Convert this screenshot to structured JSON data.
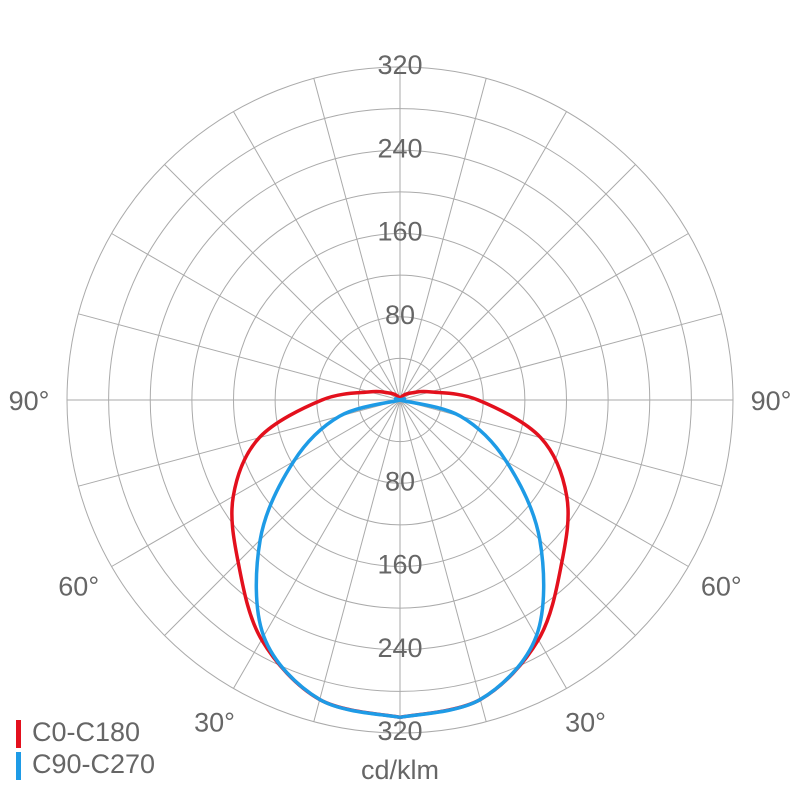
{
  "chart_data": {
    "type": "polar",
    "unit_label": "cd/klm",
    "angles": [
      0,
      15,
      30,
      45,
      60,
      75,
      90,
      105,
      120,
      135,
      150,
      165,
      180
    ],
    "series": [
      {
        "name": "C0-C180",
        "color": "#e3101d",
        "values": [
          305,
          298,
          266,
          220,
          185,
          140,
          75,
          30,
          14,
          8,
          4,
          2,
          0
        ]
      },
      {
        "name": "C90-C270",
        "color": "#1e9be6",
        "values": [
          305,
          298,
          262,
          190,
          118,
          60,
          0,
          0,
          0,
          0,
          0,
          0,
          0
        ]
      }
    ],
    "rlim": [
      0,
      320
    ],
    "rgrid": [
      40,
      80,
      120,
      160,
      200,
      240,
      280,
      320
    ],
    "rticks": [
      80,
      160,
      240,
      320
    ],
    "agrid": [
      0,
      15,
      30,
      45,
      60,
      75,
      90,
      105,
      120,
      135,
      150,
      165
    ],
    "angle_ticks": [
      {
        "value": 90,
        "label": "90°"
      },
      {
        "value": 60,
        "label": "60°"
      },
      {
        "value": 30,
        "label": "30°"
      }
    ]
  }
}
